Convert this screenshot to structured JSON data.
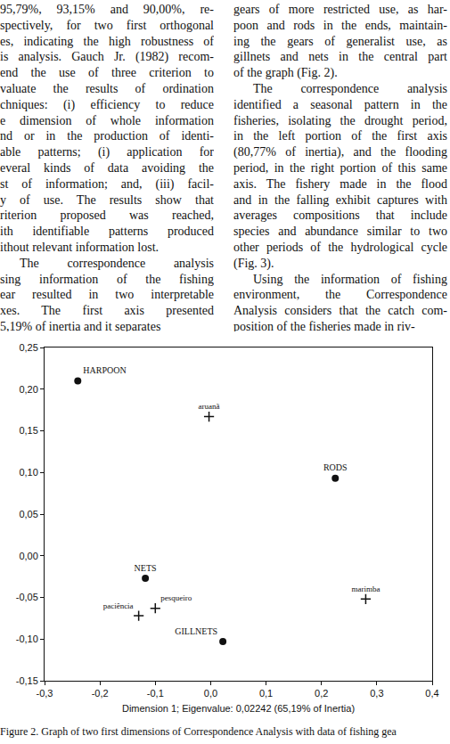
{
  "page": {
    "left_column": [
      [
        "95,79%, 93,15% and 90,00%, re-",
        "spectively, for two first orthogonal",
        "es, indicating the high robustness of",
        "is analysis. Gauch Jr. (1982) recom-",
        "end the use of three criterion to",
        "valuate the results of ordination",
        "chniques: (i) efficiency to reduce",
        "e dimension of whole information",
        "nd or in the production of identi-",
        "able patterns; (i) application for",
        "everal kinds of data avoiding the",
        "st of information; and, (iii) facil-",
        "y of use. The results show that",
        "riterion proposed was reached,",
        "ith identifiable patterns produced",
        "ithout relevant information lost."
      ],
      [
        "The correspondence analysis",
        "sing information of the fishing",
        "ear resulted in two interpretable",
        "xes. The first axis presented",
        "5,19% of inertia and it separates"
      ]
    ],
    "right_column": [
      [
        "gears of more restricted use, as har-",
        "poon and rods in the ends, maintain-",
        "ing the gears of generalist use, as",
        "gillnets and nets in the central part",
        "of the graph (Fig. 2)."
      ],
      [
        "The correspondence analysis",
        "identified a seasonal pattern in the",
        "fisheries, isolating the drought period,",
        "in the left portion of the first axis",
        "(80,77% of inertia), and the flooding",
        "period, in the right portion of this same",
        "axis. The fishery made in the flood",
        "and in the falling exhibit captures with",
        "averages compositions that include",
        "species and abundance similar to two",
        "other periods of the hydrological cycle",
        "(Fig. 3)."
      ],
      [
        "Using the information of fishing",
        "environment, the Correspondence",
        "Analysis considers that the catch com-",
        "position of the fisheries made in riv-"
      ]
    ],
    "caption": "Figure 2. Graph of two first dimensions of Correspondence Analysis with data of fishing gea"
  },
  "chart_data": {
    "type": "scatter",
    "x_label": "Dimension 1; Eigenvalue: 0,02242 (65,19% of Inertia)",
    "series": [
      {
        "labels": [
          "HARPOON",
          "RODS",
          "NETS",
          "GILLNETS"
        ],
        "x": [
          -0.24,
          0.225,
          -0.118,
          0.022
        ],
        "y": [
          0.21,
          0.093,
          -0.027,
          -0.103
        ],
        "marker": "circle",
        "color": "#111111"
      },
      {
        "labels": [
          "aruanã",
          "marimba",
          "paciência",
          "pesqueiro"
        ],
        "x": [
          -0.003,
          0.28,
          -0.13,
          -0.1
        ],
        "y": [
          0.167,
          -0.052,
          -0.072,
          -0.063
        ],
        "marker": "cross",
        "color": "#111111"
      }
    ],
    "xlim": [
      -0.3,
      0.4
    ],
    "xticks": [
      {
        "value": -0.3,
        "label": "-0,3"
      },
      {
        "value": -0.2,
        "label": "-0,2"
      },
      {
        "value": -0.1,
        "label": "-0,1"
      },
      {
        "value": 0,
        "label": "0,0"
      },
      {
        "value": 0.1,
        "label": "0,1"
      },
      {
        "value": 0.2,
        "label": "0,2"
      },
      {
        "value": 0.3,
        "label": "0,3"
      },
      {
        "value": 0.4,
        "label": "0,4"
      }
    ],
    "ylim": [
      -0.15,
      0.25
    ],
    "yticks": [
      {
        "value": -0.15,
        "label": "-0,15"
      },
      {
        "value": -0.1,
        "label": "-0,10"
      },
      {
        "value": -0.05,
        "label": "-0,05"
      },
      {
        "value": 0,
        "label": "0,00"
      },
      {
        "value": 0.05,
        "label": "0,05"
      },
      {
        "value": 0.1,
        "label": "0,10"
      },
      {
        "value": 0.15,
        "label": "0,15"
      },
      {
        "value": 0.2,
        "label": "0,20"
      },
      {
        "value": 0.25,
        "label": "0,25"
      }
    ],
    "grid": false
  }
}
